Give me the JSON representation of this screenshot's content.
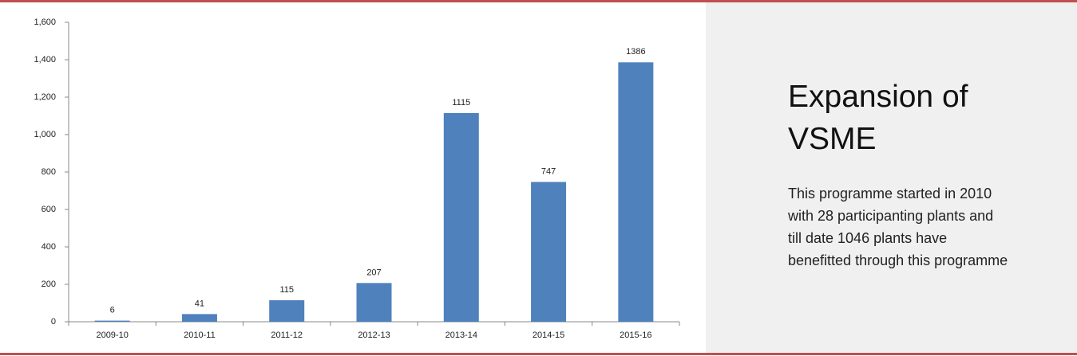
{
  "chart_data": {
    "type": "bar",
    "categories": [
      "2009-10",
      "2010-11",
      "2011-12",
      "2012-13",
      "2013-14",
      "2014-15",
      "2015-16"
    ],
    "values": [
      6,
      41,
      115,
      207,
      1115,
      747,
      1386
    ],
    "color": "#4f81bd",
    "ylim": [
      0,
      1600
    ],
    "yticks": [
      0,
      200,
      400,
      600,
      800,
      {
        "value": 1000,
        "label": "1,000"
      },
      {
        "value": 1200,
        "label": "1,200"
      },
      {
        "value": 1400,
        "label": "1,400"
      },
      {
        "value": 1600,
        "label": "1,600"
      }
    ],
    "grid": false
  },
  "panel": {
    "title": "Expansion of VSME",
    "text_lines": [
      "This programme started in 2010",
      "with 28 participanting plants and",
      "till date 1046 plants have",
      "benefitted through this programme"
    ]
  }
}
